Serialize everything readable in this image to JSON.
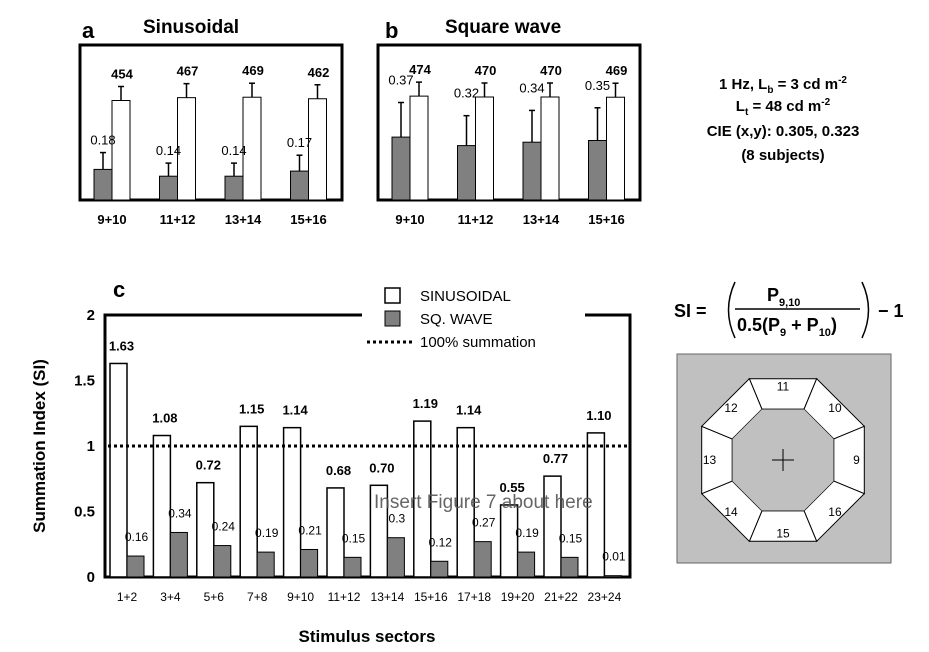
{
  "chart_data": [
    {
      "panel": "a",
      "type": "bar",
      "title": "Sinusoidal",
      "categories": [
        "9+10",
        "11+12",
        "13+14",
        "15+16"
      ],
      "series": [
        {
          "values": [
            0.18,
            0.14,
            0.14,
            0.17
          ],
          "color": "#808080",
          "labels": [
            "0.18",
            "0.14",
            "0.14",
            "0.17"
          ]
        },
        {
          "values": [
            454,
            467,
            469,
            462
          ],
          "color": "#ffffff",
          "labels": [
            "454",
            "467",
            "469",
            "462"
          ]
        }
      ],
      "error_bars": true
    },
    {
      "panel": "b",
      "type": "bar",
      "title": "Square wave",
      "categories": [
        "9+10",
        "11+12",
        "13+14",
        "15+16"
      ],
      "series": [
        {
          "values": [
            0.37,
            0.32,
            0.34,
            0.35
          ],
          "color": "#808080",
          "labels": [
            "0.37",
            "0.32",
            "0.34",
            "0.35"
          ]
        },
        {
          "values": [
            474,
            470,
            470,
            469
          ],
          "color": "#ffffff",
          "labels": [
            "474",
            "470",
            "470",
            "469"
          ]
        }
      ],
      "error_bars": true
    },
    {
      "panel": "c",
      "type": "bar",
      "xlabel": "Stimulus sectors",
      "ylabel": "Summation Index (SI)",
      "ylim": [
        0,
        2
      ],
      "yticks": [
        "0",
        "0.5",
        "1",
        "1.5",
        "2"
      ],
      "categories": [
        "1+2",
        "3+4",
        "5+6",
        "7+8",
        "9+10",
        "11+12",
        "13+14",
        "15+16",
        "17+18",
        "19+20",
        "21+22",
        "23+24"
      ],
      "series": [
        {
          "name": "SINUSOIDAL",
          "color": "#ffffff",
          "values": [
            1.63,
            1.08,
            0.72,
            1.15,
            1.14,
            0.68,
            0.7,
            1.19,
            1.14,
            0.55,
            0.77,
            1.1
          ],
          "labels": [
            "1.63",
            "1.08",
            "0.72",
            "1.15",
            "1.14",
            "0.68",
            "0.70",
            "1.19",
            "1.14",
            "0.55",
            "0.77",
            "1.10"
          ]
        },
        {
          "name": "SQ. WAVE",
          "color": "#808080",
          "values": [
            0.16,
            0.34,
            0.24,
            0.19,
            0.21,
            0.15,
            0.3,
            0.12,
            0.27,
            0.19,
            0.15,
            0.01
          ],
          "labels": [
            "0.16",
            "0.34",
            "0.24",
            "0.19",
            "0.21",
            "0.15",
            "0.3",
            "0.12",
            "0.27",
            "0.19",
            "0.15",
            "0.01"
          ]
        }
      ],
      "reference_line": {
        "name": "100% summation",
        "value": 1,
        "style": "dotted"
      },
      "legend": "top-center",
      "overlay_text": "Insert Figure 7 about here"
    }
  ],
  "panel_letters": {
    "a": "a",
    "b": "b",
    "c": "c"
  },
  "conditions": {
    "line1_prefix": "1 Hz, L",
    "line1_sub": "b",
    "line1_suffix": " =   3 cd m",
    "line1_sup": "-2",
    "line2_prefix": "L",
    "line2_sub": "t",
    "line2_suffix": " =  48 cd m",
    "line2_sup": "-2",
    "line3": "CIE (x,y):  0.305, 0.323",
    "line4": "(8 subjects)"
  },
  "formula": {
    "lhs": "SI = ",
    "num_main": "P",
    "num_sub": "9,10",
    "den_prefix": "0.5(P",
    "den_sub1": "9",
    "den_plus": " + P",
    "den_sub2": "10",
    "den_suffix": ")",
    "tail": "− 1"
  },
  "sector_diagram": {
    "sectors": [
      "11",
      "10",
      "9",
      "16",
      "15",
      "14",
      "13",
      "12"
    ],
    "background": "#c0c0c0"
  }
}
